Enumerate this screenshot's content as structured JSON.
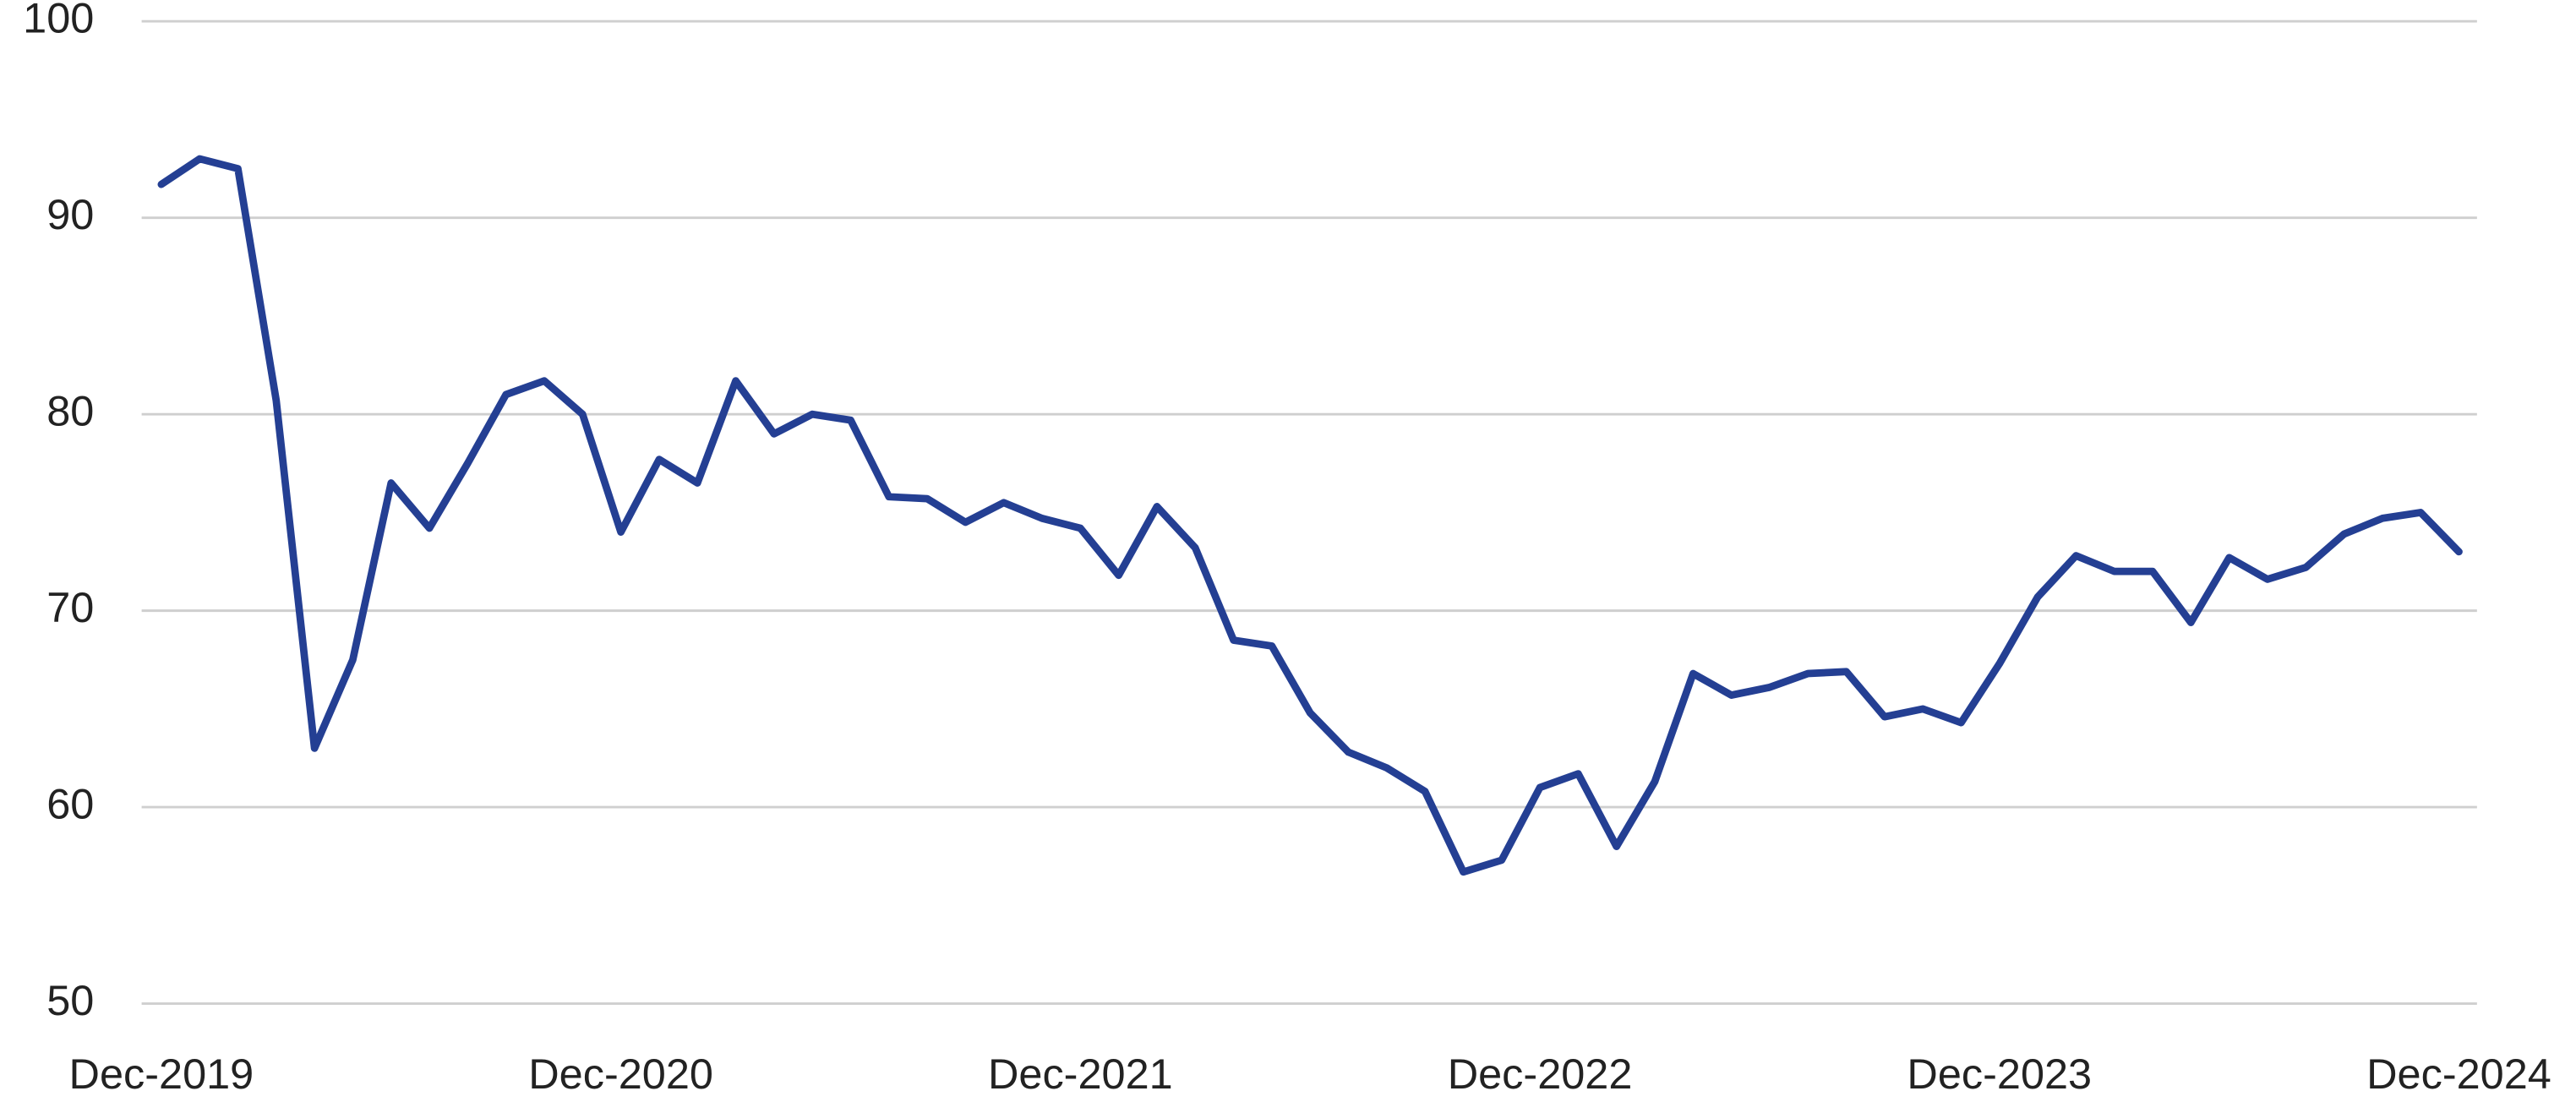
{
  "chart_data": {
    "type": "line",
    "categories": [
      "Dec-2019",
      null,
      null,
      null,
      null,
      null,
      null,
      null,
      null,
      null,
      null,
      null,
      "Dec-2020",
      null,
      null,
      null,
      null,
      null,
      null,
      null,
      null,
      null,
      null,
      null,
      "Dec-2021",
      null,
      null,
      null,
      null,
      null,
      null,
      null,
      null,
      null,
      null,
      null,
      "Dec-2022",
      null,
      null,
      null,
      null,
      null,
      null,
      null,
      null,
      null,
      null,
      null,
      "Dec-2023",
      null,
      null,
      null,
      null,
      null,
      null,
      null,
      null,
      null,
      null,
      null,
      "Dec-2024"
    ],
    "series": [
      {
        "color": "#243f93",
        "values": [
          91.7,
          93.0,
          92.5,
          80.7,
          63.0,
          67.5,
          76.5,
          74.2,
          77.5,
          81.0,
          81.7,
          80.0,
          74.0,
          77.7,
          76.5,
          81.7,
          79.0,
          80.0,
          79.7,
          75.8,
          75.7,
          74.5,
          75.5,
          74.7,
          74.2,
          71.8,
          75.3,
          73.2,
          68.5,
          68.2,
          64.8,
          62.8,
          62.0,
          60.8,
          56.7,
          57.3,
          61.0,
          61.7,
          58.0,
          61.3,
          66.8,
          65.7,
          66.1,
          66.8,
          66.9,
          64.6,
          65.0,
          64.3,
          67.3,
          70.7,
          72.8,
          72.0,
          72.0,
          69.4,
          72.7,
          71.6,
          72.2,
          73.9,
          74.7,
          75.0,
          73.0
        ]
      }
    ],
    "ylim": [
      50,
      100
    ],
    "yticks": [
      50,
      60,
      70,
      80,
      90,
      100
    ],
    "grid": true
  }
}
